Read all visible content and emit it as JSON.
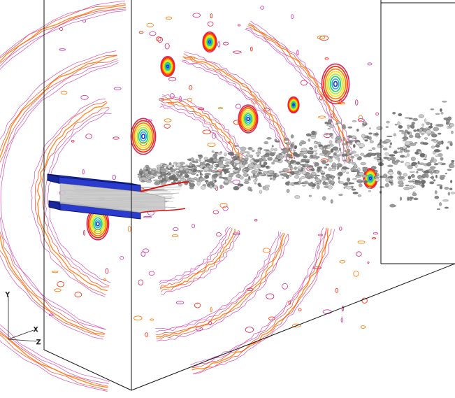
{
  "scene": {
    "axes_triad": {
      "y_label": "Y",
      "x_label": "X",
      "z_label": "Z"
    },
    "contour_palette": [
      "#cc33aa",
      "#dd2255",
      "#ff2200",
      "#ff7700",
      "#ffdd00",
      "#aaee33",
      "#22cc66",
      "#22aadd",
      "#1133cc"
    ],
    "isosurface_color": "#8a8a8a",
    "nozzle_color": "#2233bb",
    "frame_color": "#111111"
  }
}
